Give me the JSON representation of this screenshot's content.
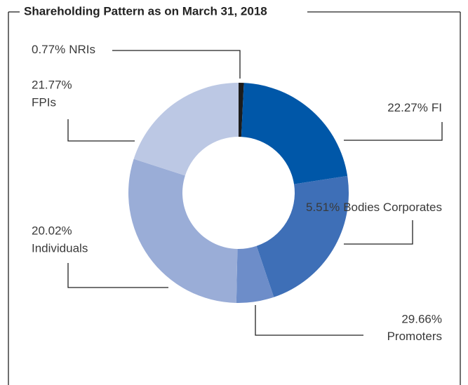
{
  "chart_data": {
    "type": "donut",
    "title": "Shareholding Pattern as on March 31, 2018",
    "categories": [
      "NRIs",
      "FPIs",
      "FI",
      "Bodies Corporates",
      "Promoters",
      "Individuals"
    ],
    "values": [
      0.77,
      21.77,
      22.27,
      5.51,
      29.66,
      20.02
    ],
    "value_labels": [
      "0.77%",
      "21.77%",
      "22.27%",
      "5.51%",
      "29.66%",
      "20.02%"
    ],
    "colors": [
      "#1c1c1c",
      "#0057a8",
      "#3e6fb7",
      "#6d8dc9",
      "#9aadd7",
      "#bcc8e4"
    ]
  }
}
